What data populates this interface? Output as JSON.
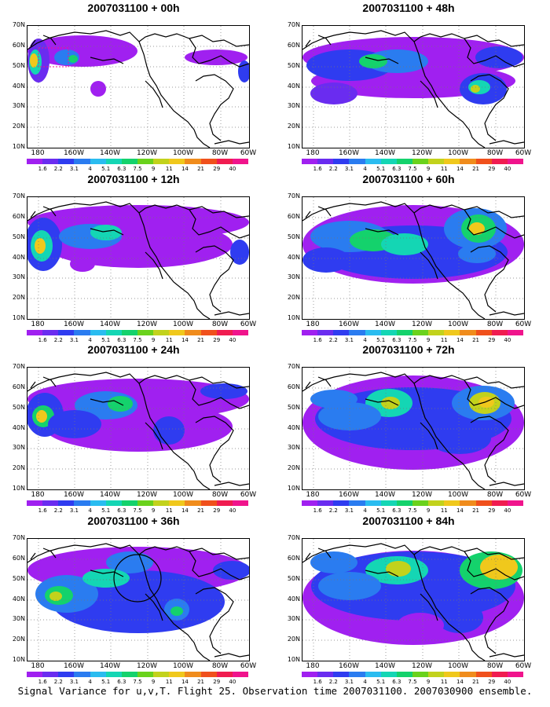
{
  "panels": [
    {
      "title": "2007031100 + 00h"
    },
    {
      "title": "2007031100 + 48h"
    },
    {
      "title": "2007031100 + 12h"
    },
    {
      "title": "2007031100 + 60h"
    },
    {
      "title": "2007031100 + 24h"
    },
    {
      "title": "2007031100 + 72h"
    },
    {
      "title": "2007031100 + 36h"
    },
    {
      "title": "2007031100 + 84h"
    }
  ],
  "lat_labels": [
    "70N",
    "60N",
    "50N",
    "40N",
    "30N",
    "20N",
    "10N"
  ],
  "lon_labels": [
    "180",
    "160W",
    "140W",
    "120W",
    "100W",
    "80W",
    "60W"
  ],
  "colorbar": {
    "labels": [
      "1.6",
      "2.2",
      "3.1",
      "4",
      "5.1",
      "6.3",
      "7.5",
      "9",
      "11",
      "14",
      "21",
      "29",
      "40"
    ],
    "colors": [
      "#a020f0",
      "#6a2cf0",
      "#2f3cf0",
      "#2a7cf0",
      "#2abcf0",
      "#14d6b4",
      "#14d26c",
      "#6ad21c",
      "#c2d21c",
      "#f0c81c",
      "#f08c1c",
      "#f0501c",
      "#f01c50",
      "#f0148c"
    ]
  },
  "caption": "Signal Variance for u,v,T. Flight 25. Observation time 2007031100. 2007030900 ensemble."
}
